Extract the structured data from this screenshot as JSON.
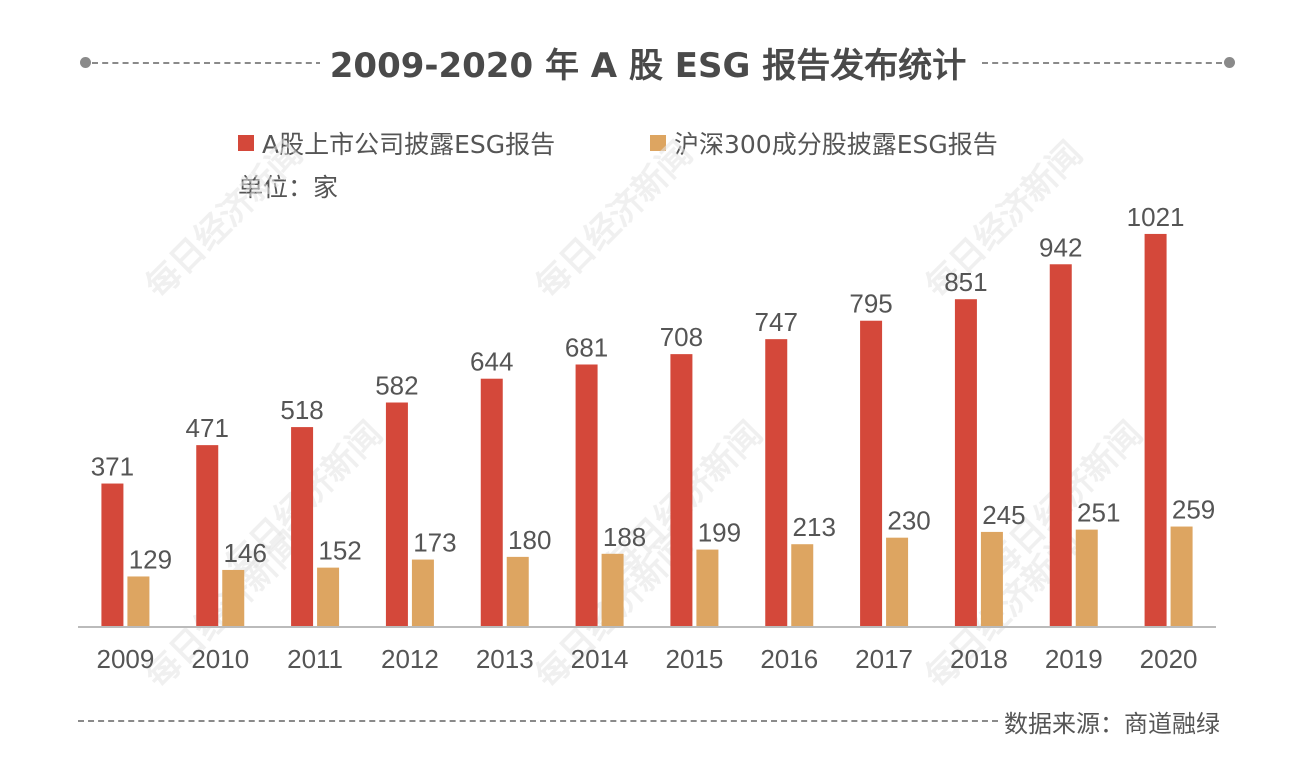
{
  "title": "2009-2020 年 A 股 ESG 报告发布统计",
  "unit_label": "单位：家",
  "source": "数据来源：商道融绿",
  "watermark": "每日经济新闻",
  "colors": {
    "series1": "#D4483A",
    "series2": "#DDA561",
    "axis": "#bbbbbb",
    "text": "#555555"
  },
  "chart_data": {
    "type": "bar",
    "title": "2009-2020 年 A 股 ESG 报告发布统计",
    "categories": [
      "2009",
      "2010",
      "2011",
      "2012",
      "2013",
      "2014",
      "2015",
      "2016",
      "2017",
      "2018",
      "2019",
      "2020"
    ],
    "series": [
      {
        "name": "A股上市公司披露ESG报告",
        "values": [
          371,
          471,
          518,
          582,
          644,
          681,
          708,
          747,
          795,
          851,
          942,
          1021
        ]
      },
      {
        "name": "沪深300成分股披露ESG报告",
        "values": [
          129,
          146,
          152,
          173,
          180,
          188,
          199,
          213,
          230,
          245,
          251,
          259
        ]
      }
    ],
    "ylim": [
      0,
      1100
    ],
    "grid": false,
    "legend_position": "top",
    "data_labels": true
  }
}
